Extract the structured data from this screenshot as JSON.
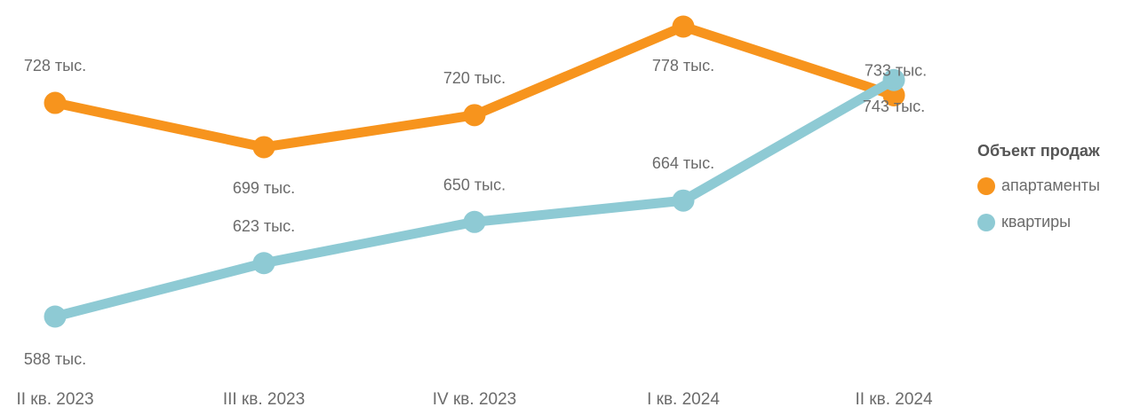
{
  "chart_data": {
    "type": "line",
    "categories": [
      "II кв. 2023",
      "III кв. 2023",
      "IV кв. 2023",
      "I кв. 2024",
      "II кв. 2024"
    ],
    "series": [
      {
        "name": "апартаменты",
        "color": "#F7941D",
        "values": [
          728,
          699,
          720,
          778,
          733
        ],
        "labels": [
          "728 тыс.",
          "699 тыс.",
          "720 тыс.",
          "778 тыс.",
          "733 тыс."
        ]
      },
      {
        "name": "квартиры",
        "color": "#8ECAD4",
        "values": [
          588,
          623,
          650,
          664,
          743
        ],
        "labels": [
          "588 тыс.",
          "623 тыс.",
          "650 тыс.",
          "664 тыс.",
          "743 тыс."
        ]
      }
    ],
    "legend_title": "Объект продаж",
    "legend_position": "right",
    "ylim": [
      588,
      778
    ],
    "grid": false
  }
}
